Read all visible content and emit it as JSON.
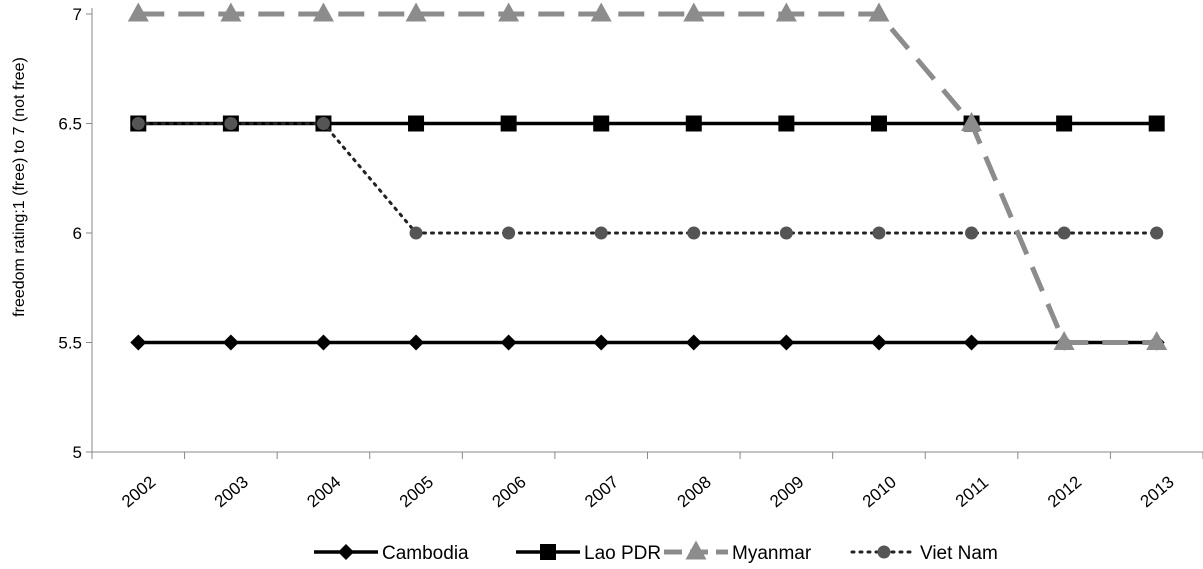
{
  "chart_data": {
    "type": "line",
    "title": "",
    "xlabel": "",
    "ylabel": "freedom rating:1 (free) to 7 (not free)",
    "ylim": [
      5,
      7
    ],
    "yticks": [
      5,
      5.5,
      6,
      6.5,
      7
    ],
    "grid": false,
    "legend_position": "bottom",
    "categories": [
      "2002",
      "2003",
      "2004",
      "2005",
      "2006",
      "2007",
      "2008",
      "2009",
      "2010",
      "2011",
      "2012",
      "2013"
    ],
    "series": [
      {
        "name": "Cambodia",
        "values": [
          5.5,
          5.5,
          5.5,
          5.5,
          5.5,
          5.5,
          5.5,
          5.5,
          5.5,
          5.5,
          5.5,
          5.5
        ],
        "color": "#000000",
        "line_style": "solid",
        "marker": "diamond"
      },
      {
        "name": "Lao PDR",
        "values": [
          6.5,
          6.5,
          6.5,
          6.5,
          6.5,
          6.5,
          6.5,
          6.5,
          6.5,
          6.5,
          6.5,
          6.5
        ],
        "color": "#000000",
        "line_style": "solid",
        "marker": "square"
      },
      {
        "name": "Myanmar",
        "values": [
          7,
          7,
          7,
          7,
          7,
          7,
          7,
          7,
          7,
          6.5,
          5.5,
          5.5
        ],
        "color": "#8c8c8c",
        "line_style": "dashed",
        "marker": "triangle"
      },
      {
        "name": "Viet Nam",
        "values": [
          6.5,
          6.5,
          6.5,
          6,
          6,
          6,
          6,
          6,
          6,
          6,
          6,
          6
        ],
        "color": "#222222",
        "line_style": "dotted",
        "marker": "circle",
        "marker_color": "#555555"
      }
    ]
  }
}
